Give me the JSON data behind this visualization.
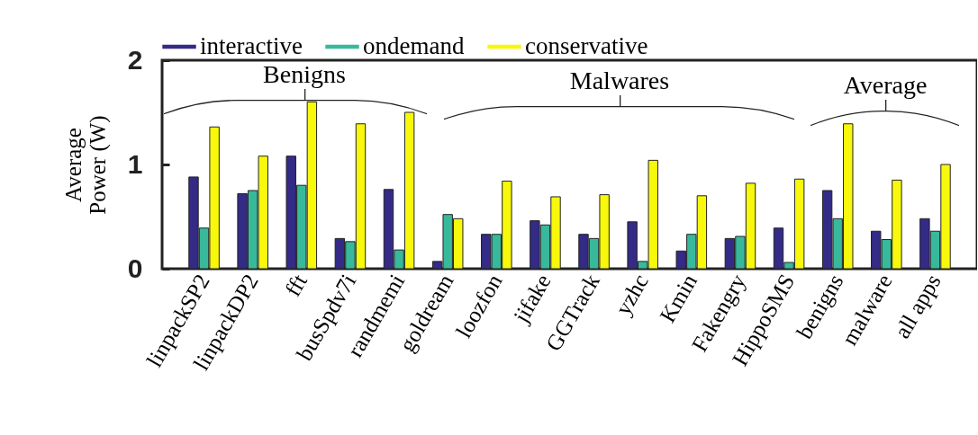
{
  "chart_data": {
    "type": "bar",
    "ylabel": "Average Power (W)",
    "categories": [
      "linpackSP2",
      "linpackDP2",
      "fft",
      "busSpdv7i",
      "randmemi",
      "goldream",
      "loozfon",
      "jifake",
      "GGTrack",
      "yzhc",
      "Kmin",
      "Fakengry",
      "HippoSMS",
      "benigns",
      "malware",
      "all apps"
    ],
    "series": [
      {
        "name": "interactive",
        "color": "#332b86",
        "values": [
          0.88,
          0.72,
          1.08,
          0.29,
          0.76,
          0.07,
          0.33,
          0.46,
          0.33,
          0.45,
          0.17,
          0.29,
          0.39,
          0.75,
          0.36,
          0.48
        ]
      },
      {
        "name": "ondemand",
        "color": "#38b99b",
        "values": [
          0.39,
          0.75,
          0.8,
          0.26,
          0.18,
          0.52,
          0.33,
          0.42,
          0.29,
          0.07,
          0.33,
          0.31,
          0.06,
          0.48,
          0.28,
          0.36
        ]
      },
      {
        "name": "conservative",
        "color": "#f8f80c",
        "values": [
          1.36,
          1.08,
          1.6,
          1.39,
          1.5,
          0.48,
          0.84,
          0.69,
          0.71,
          1.04,
          0.7,
          0.82,
          0.86,
          1.39,
          0.85,
          1.0
        ]
      }
    ],
    "ylim": [
      0,
      2
    ],
    "yticks": [
      0,
      1,
      2
    ],
    "grid": false,
    "legend": "top",
    "annotations": [
      "Benigns",
      "Malwares",
      "Average"
    ]
  }
}
